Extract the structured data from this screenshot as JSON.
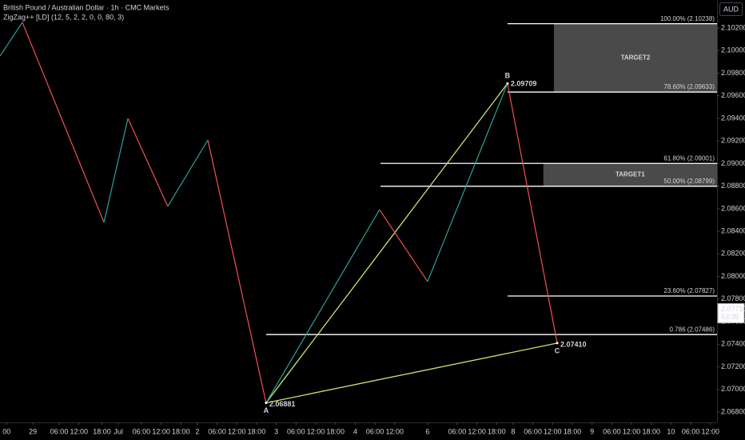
{
  "chart_data": {
    "type": "line",
    "title": "British Pound / Australian Dollar · 1h · CMC Markets",
    "subtitle": "ZigZag++ [LD] (12, 5, 2, 2, 0, 0, 80, 3)",
    "currency": "AUD",
    "x": [
      0,
      6.8,
      31.6,
      38.9,
      51,
      63.2,
      80.9,
      115.4,
      130,
      154.3,
      169.4
    ],
    "values": [
      2.09952,
      2.1025,
      2.08479,
      2.094,
      2.08621,
      2.09208,
      2.06881,
      2.08592,
      2.07955,
      2.09709,
      2.0741
    ],
    "up_color": "#26a69a",
    "down_color": "#ef5350",
    "xlim": [
      0,
      218
    ],
    "ylim": [
      2.06708,
      2.10448
    ],
    "xticks": [
      {
        "value": 2,
        "label": "00"
      },
      {
        "value": 10,
        "label": "29"
      },
      {
        "value": 18,
        "label": "06:00"
      },
      {
        "value": 24,
        "label": "12:00"
      },
      {
        "value": 31,
        "label": "18:00"
      },
      {
        "value": 36,
        "label": "Jul"
      },
      {
        "value": 43,
        "label": "06:00"
      },
      {
        "value": 49,
        "label": "12:00"
      },
      {
        "value": 55,
        "label": "18:00"
      },
      {
        "value": 60,
        "label": "2"
      },
      {
        "value": 66,
        "label": "06:00"
      },
      {
        "value": 72,
        "label": "12:00"
      },
      {
        "value": 78,
        "label": "18:00"
      },
      {
        "value": 84,
        "label": "3"
      },
      {
        "value": 90,
        "label": "06:00"
      },
      {
        "value": 96,
        "label": "12:00"
      },
      {
        "value": 102,
        "label": "18:00"
      },
      {
        "value": 108,
        "label": "4"
      },
      {
        "value": 114,
        "label": "06:00"
      },
      {
        "value": 120,
        "label": "12:00"
      },
      {
        "value": 130,
        "label": "6"
      },
      {
        "value": 139,
        "label": "06:00"
      },
      {
        "value": 145,
        "label": "12:00"
      },
      {
        "value": 151,
        "label": "18:00"
      },
      {
        "value": 156,
        "label": "8"
      },
      {
        "value": 162,
        "label": "06:00"
      },
      {
        "value": 168,
        "label": "12:00"
      },
      {
        "value": 174,
        "label": "18:00"
      },
      {
        "value": 180,
        "label": "9"
      },
      {
        "value": 186,
        "label": "06:00"
      },
      {
        "value": 192,
        "label": "12:00"
      },
      {
        "value": 198,
        "label": "18:00"
      },
      {
        "value": 204,
        "label": "10"
      },
      {
        "value": 210,
        "label": "06:00"
      },
      {
        "value": 216,
        "label": "12:00"
      }
    ],
    "yticks": [
      {
        "value": 2.068,
        "label": "2.06800"
      },
      {
        "value": 2.07,
        "label": "2.07000"
      },
      {
        "value": 2.072,
        "label": "2.07200"
      },
      {
        "value": 2.074,
        "label": "2.07400"
      },
      {
        "value": 2.076,
        "label": "2.07600"
      },
      {
        "value": 2.078,
        "label": "2.07800"
      },
      {
        "value": 2.08,
        "label": "2.08000"
      },
      {
        "value": 2.082,
        "label": "2.08200"
      },
      {
        "value": 2.084,
        "label": "2.08400"
      },
      {
        "value": 2.086,
        "label": "2.08600"
      },
      {
        "value": 2.088,
        "label": "2.08800"
      },
      {
        "value": 2.09,
        "label": "2.09000"
      },
      {
        "value": 2.092,
        "label": "2.09200"
      },
      {
        "value": 2.094,
        "label": "2.09400"
      },
      {
        "value": 2.096,
        "label": "2.09600"
      },
      {
        "value": 2.098,
        "label": "2.09800"
      },
      {
        "value": 2.1,
        "label": "2.10000"
      },
      {
        "value": 2.102,
        "label": "2.10200"
      }
    ],
    "pattern": {
      "color": "#c6e36a",
      "points": [
        {
          "name": "A",
          "x": 80.9,
          "value": 2.06881,
          "label": "2.06881"
        },
        {
          "name": "B",
          "x": 154.3,
          "value": 2.09709,
          "label": "2.09709"
        },
        {
          "name": "C",
          "x": 169.4,
          "value": 2.0741,
          "label": "2.07410"
        }
      ]
    },
    "fib_color": "#ffffff",
    "fib_levels": [
      {
        "label": "100.00% (2.10238)",
        "value": 2.10238,
        "x_start": 154.3
      },
      {
        "label": "78.60% (2.09633)",
        "value": 2.09633,
        "x_start": 154.3
      },
      {
        "label": "61.80% (2.09001)",
        "value": 2.09001,
        "x_start": 115.7
      },
      {
        "label": "50.00% (2.08799)",
        "value": 2.08799,
        "x_start": 115.7
      },
      {
        "label": "23.60% (2.07827)",
        "value": 2.07827,
        "x_start": 154.3
      },
      {
        "label": "0.786 (2.07486)",
        "value": 2.07486,
        "x_start": 80.9
      }
    ],
    "targets": [
      {
        "label": "TARGET2",
        "x_start": 168.4,
        "top": 2.10238,
        "bottom": 2.09633
      },
      {
        "label": "TARGET1",
        "x_start": 165.2,
        "top": 2.09001,
        "bottom": 2.08799
      }
    ],
    "last_price": {
      "value": 2.0771,
      "label": "2.07710",
      "countdown": "53:35"
    }
  }
}
